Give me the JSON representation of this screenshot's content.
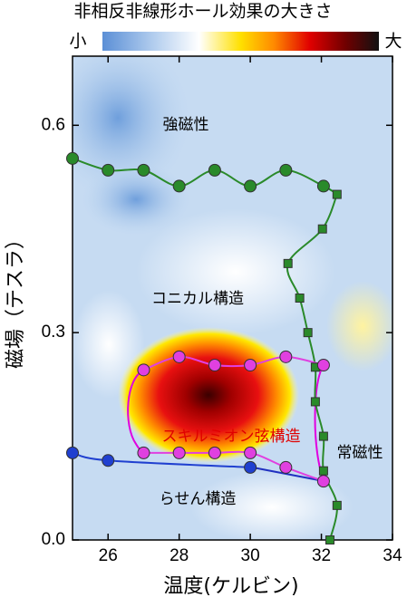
{
  "chart_data": {
    "type": "scatter",
    "title": "非相反非線形ホール効果の大きさ",
    "colorbar_labels": [
      "小",
      "大"
    ],
    "xlabel": "温度(ケルビン)",
    "ylabel": "磁場（テスラ）",
    "annotations": [
      "強磁性",
      "コニカル構造",
      "スキルミオン弦構造",
      "常磁性",
      "らせん構造"
    ],
    "xlim": [
      25,
      34
    ],
    "ylim": [
      0,
      0.7
    ],
    "xticks": [
      26,
      28,
      30,
      32,
      34
    ],
    "yticks": [
      {
        "value": 0,
        "label": "0.0"
      },
      0.3,
      0.6
    ],
    "series": [
      {
        "color": "#2a8a2a",
        "marker": "circle",
        "x": [
          25,
          26,
          27,
          28,
          29,
          30,
          31,
          32.06
        ],
        "values": [
          0.552,
          0.535,
          0.535,
          0.512,
          0.535,
          0.512,
          0.535,
          0.512
        ]
      },
      {
        "color": "#2a8a2a",
        "marker": "square",
        "x": [
          32.44,
          32.03,
          31.06,
          31.39,
          31.62,
          31.83,
          31.83,
          32.06,
          32.06,
          32.44,
          32.24
        ],
        "values": [
          0.5,
          0.45,
          0.4,
          0.35,
          0.3,
          0.25,
          0.2,
          0.15,
          0.1,
          0.05,
          0.0
        ]
      },
      {
        "color": "#e040e0",
        "marker": "circle",
        "x": [
          27,
          28,
          29,
          30,
          31,
          32.06
        ],
        "values": [
          0.246,
          0.265,
          0.253,
          0.253,
          0.265,
          0.253
        ]
      },
      {
        "color": "#e040e0",
        "marker": "circle",
        "x": [
          27,
          28,
          29,
          30,
          31,
          32.06
        ],
        "values": [
          0.126,
          0.126,
          0.126,
          0.126,
          0.105,
          0.085
        ]
      },
      {
        "color": "#2040d0",
        "marker": "circle",
        "x": [
          25,
          26,
          30
        ],
        "values": [
          0.126,
          0.115,
          0.105
        ]
      }
    ]
  }
}
